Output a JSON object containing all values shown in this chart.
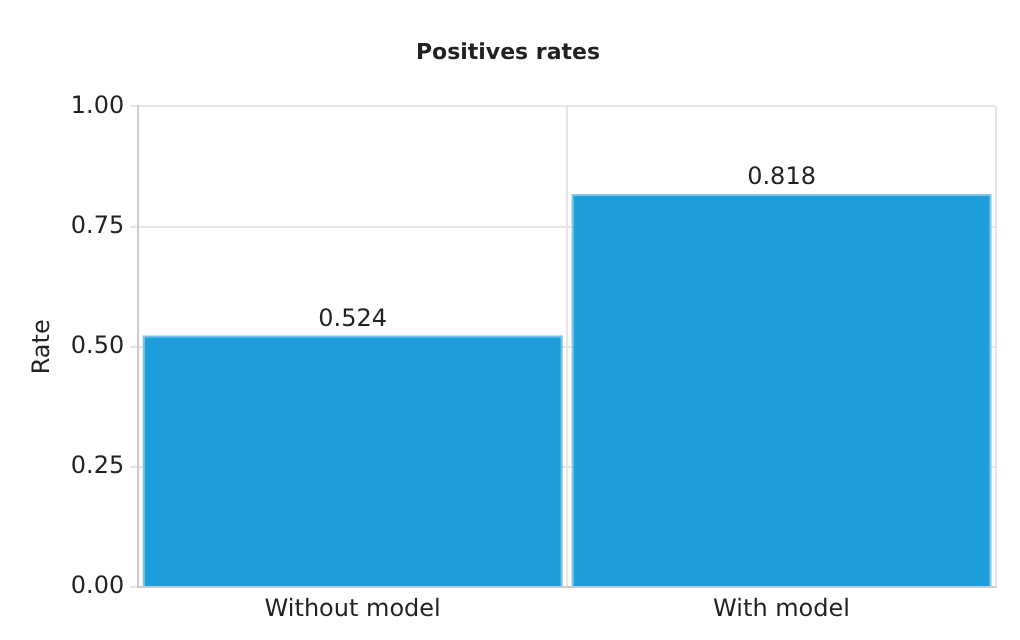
{
  "chart_data": {
    "type": "bar",
    "title": "Positives rates",
    "ylabel": "Rate",
    "categories": [
      "Without model",
      "With model"
    ],
    "values": [
      0.524,
      0.818
    ],
    "color": "#1e9fdc",
    "ylim": [
      0,
      1
    ],
    "yticks": [
      {
        "value": 0,
        "label": "0.00"
      },
      {
        "value": 0.25,
        "label": "0.25"
      },
      {
        "value": 0.5,
        "label": "0.50"
      },
      {
        "value": 0.75,
        "label": "0.75"
      },
      {
        "value": 1,
        "label": "1.00"
      }
    ],
    "grid": true,
    "data_labels": true
  }
}
